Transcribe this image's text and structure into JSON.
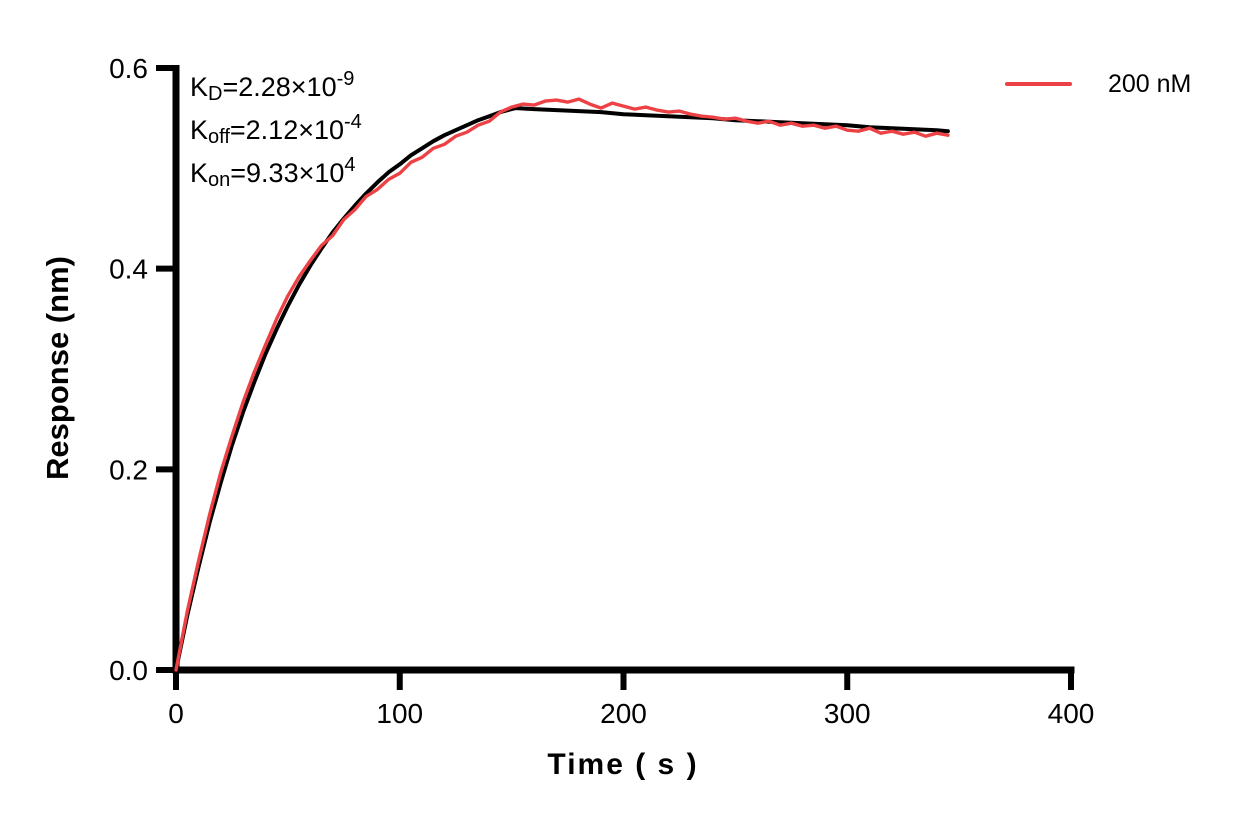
{
  "figure": {
    "background": "#ffffff"
  },
  "legend": {
    "label": "200 nM",
    "color": "#ED4245"
  },
  "kinetics": {
    "rows": [
      {
        "base": "K",
        "sub": "D",
        "value": "=2.28×10",
        "exp": "-9"
      },
      {
        "base": "K",
        "sub": "off",
        "value": "=2.12×10",
        "exp": "-4"
      },
      {
        "base": "K",
        "sub": "on",
        "value": "=9.33×10",
        "exp": "4"
      }
    ]
  },
  "chart_data": {
    "type": "line",
    "title": "",
    "xlabel": "Time ( s )",
    "ylabel": "Response (nm)",
    "xlim": [
      0,
      400
    ],
    "ylim": [
      0,
      0.6
    ],
    "xticks": [
      0,
      100,
      200,
      300,
      400
    ],
    "xtick_labels": [
      "0",
      "100",
      "200",
      "300",
      "400"
    ],
    "yticks": [
      0,
      0.2,
      0.4,
      0.6
    ],
    "ytick_labels": [
      "0.0",
      "0.2",
      "0.4",
      "0.6"
    ],
    "grid": false,
    "legend_position": "top-right",
    "annotations": [
      "KD=2.28×10⁻⁹",
      "Koff=2.12×10⁻⁴",
      "Kon=9.33×10⁴"
    ],
    "axis_color": "#000000",
    "series": [
      {
        "id": "fit-curve",
        "name": "Fitted curve",
        "color": "#000000",
        "width": 4,
        "z": 0,
        "points": [
          [
            0,
            0
          ],
          [
            5,
            0.054
          ],
          [
            10,
            0.102
          ],
          [
            15,
            0.147
          ],
          [
            20,
            0.187
          ],
          [
            25,
            0.224
          ],
          [
            30,
            0.257
          ],
          [
            35,
            0.287
          ],
          [
            40,
            0.315
          ],
          [
            45,
            0.34
          ],
          [
            50,
            0.363
          ],
          [
            55,
            0.384
          ],
          [
            60,
            0.403
          ],
          [
            65,
            0.42
          ],
          [
            70,
            0.436
          ],
          [
            75,
            0.45
          ],
          [
            80,
            0.463
          ],
          [
            85,
            0.475
          ],
          [
            90,
            0.486
          ],
          [
            95,
            0.496
          ],
          [
            100,
            0.504
          ],
          [
            105,
            0.513
          ],
          [
            110,
            0.52
          ],
          [
            115,
            0.527
          ],
          [
            120,
            0.533
          ],
          [
            125,
            0.538
          ],
          [
            130,
            0.543
          ],
          [
            135,
            0.548
          ],
          [
            140,
            0.552
          ],
          [
            145,
            0.556
          ],
          [
            150,
            0.559
          ],
          [
            152,
            0.56
          ],
          [
            160,
            0.559
          ],
          [
            170,
            0.558
          ],
          [
            180,
            0.557
          ],
          [
            190,
            0.556
          ],
          [
            200,
            0.554
          ],
          [
            210,
            0.553
          ],
          [
            220,
            0.552
          ],
          [
            230,
            0.551
          ],
          [
            240,
            0.55
          ],
          [
            250,
            0.548
          ],
          [
            260,
            0.547
          ],
          [
            270,
            0.546
          ],
          [
            280,
            0.545
          ],
          [
            290,
            0.544
          ],
          [
            300,
            0.543
          ],
          [
            310,
            0.541
          ],
          [
            320,
            0.54
          ],
          [
            330,
            0.539
          ],
          [
            340,
            0.538
          ],
          [
            345,
            0.537
          ]
        ]
      },
      {
        "id": "measured-200nM",
        "name": "200 nM",
        "color": "#ED4245",
        "width": 3.4,
        "z": 1,
        "points": [
          [
            0,
            0
          ],
          [
            5,
            0.058
          ],
          [
            10,
            0.108
          ],
          [
            15,
            0.155
          ],
          [
            20,
            0.197
          ],
          [
            25,
            0.233
          ],
          [
            30,
            0.267
          ],
          [
            35,
            0.297
          ],
          [
            40,
            0.324
          ],
          [
            45,
            0.35
          ],
          [
            50,
            0.373
          ],
          [
            55,
            0.392
          ],
          [
            60,
            0.408
          ],
          [
            65,
            0.423
          ],
          [
            70,
            0.433
          ],
          [
            75,
            0.449
          ],
          [
            80,
            0.459
          ],
          [
            85,
            0.472
          ],
          [
            90,
            0.479
          ],
          [
            95,
            0.489
          ],
          [
            100,
            0.495
          ],
          [
            105,
            0.506
          ],
          [
            110,
            0.511
          ],
          [
            115,
            0.52
          ],
          [
            120,
            0.524
          ],
          [
            125,
            0.532
          ],
          [
            130,
            0.536
          ],
          [
            135,
            0.543
          ],
          [
            140,
            0.547
          ],
          [
            145,
            0.556
          ],
          [
            150,
            0.561
          ],
          [
            155,
            0.564
          ],
          [
            160,
            0.563
          ],
          [
            165,
            0.567
          ],
          [
            170,
            0.568
          ],
          [
            175,
            0.566
          ],
          [
            180,
            0.569
          ],
          [
            185,
            0.564
          ],
          [
            190,
            0.56
          ],
          [
            195,
            0.565
          ],
          [
            200,
            0.562
          ],
          [
            205,
            0.559
          ],
          [
            210,
            0.561
          ],
          [
            215,
            0.558
          ],
          [
            220,
            0.556
          ],
          [
            225,
            0.557
          ],
          [
            230,
            0.554
          ],
          [
            235,
            0.552
          ],
          [
            240,
            0.551
          ],
          [
            245,
            0.549
          ],
          [
            250,
            0.55
          ],
          [
            255,
            0.547
          ],
          [
            260,
            0.545
          ],
          [
            265,
            0.547
          ],
          [
            270,
            0.543
          ],
          [
            275,
            0.545
          ],
          [
            280,
            0.542
          ],
          [
            285,
            0.543
          ],
          [
            290,
            0.54
          ],
          [
            295,
            0.542
          ],
          [
            300,
            0.538
          ],
          [
            305,
            0.537
          ],
          [
            310,
            0.54
          ],
          [
            315,
            0.535
          ],
          [
            320,
            0.537
          ],
          [
            325,
            0.534
          ],
          [
            330,
            0.536
          ],
          [
            335,
            0.532
          ],
          [
            340,
            0.535
          ],
          [
            345,
            0.533
          ]
        ]
      }
    ]
  }
}
